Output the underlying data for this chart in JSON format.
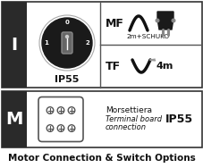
{
  "title": "Motor Connection & Switch Options",
  "bg_color": "#ffffff",
  "border_color": "#555555",
  "row1": {
    "label": "I",
    "ip_rating": "IP55",
    "mf_label": "MF",
    "mf_sub": "2m+SCHUKO",
    "tf_label": "TF",
    "tf_sub": "4m"
  },
  "row2": {
    "label": "M",
    "desc_line1": "Morsettiera",
    "desc_line2": "Terminal board",
    "desc_line3": "connection",
    "ip_rating": "IP55"
  }
}
